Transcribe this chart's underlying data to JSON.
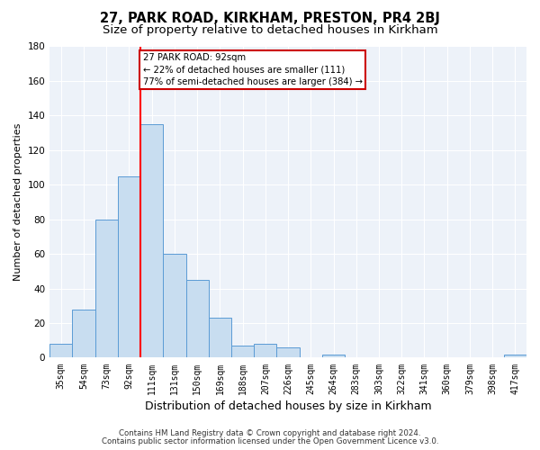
{
  "title": "27, PARK ROAD, KIRKHAM, PRESTON, PR4 2BJ",
  "subtitle": "Size of property relative to detached houses in Kirkham",
  "xlabel": "Distribution of detached houses by size in Kirkham",
  "ylabel": "Number of detached properties",
  "bar_labels": [
    "35sqm",
    "54sqm",
    "73sqm",
    "92sqm",
    "111sqm",
    "131sqm",
    "150sqm",
    "169sqm",
    "188sqm",
    "207sqm",
    "226sqm",
    "245sqm",
    "264sqm",
    "283sqm",
    "303sqm",
    "322sqm",
    "341sqm",
    "360sqm",
    "379sqm",
    "398sqm",
    "417sqm"
  ],
  "bar_heights": [
    8,
    28,
    80,
    105,
    135,
    60,
    45,
    23,
    7,
    8,
    6,
    0,
    2,
    0,
    0,
    0,
    0,
    0,
    0,
    0,
    2
  ],
  "bar_color": "#c8ddf0",
  "bar_edge_color": "#5b9bd5",
  "vline_x_index": 3,
  "vline_color": "red",
  "annotation_text": "27 PARK ROAD: 92sqm\n← 22% of detached houses are smaller (111)\n77% of semi-detached houses are larger (384) →",
  "annotation_box_color": "white",
  "annotation_box_edge": "#cc0000",
  "ylim": [
    0,
    180
  ],
  "yticks": [
    0,
    20,
    40,
    60,
    80,
    100,
    120,
    140,
    160,
    180
  ],
  "footer1": "Contains HM Land Registry data © Crown copyright and database right 2024.",
  "footer2": "Contains public sector information licensed under the Open Government Licence v3.0.",
  "bg_color": "#edf2f9",
  "grid_color": "#ffffff",
  "title_fontsize": 10.5,
  "subtitle_fontsize": 9.5,
  "ylabel_fontsize": 8,
  "xlabel_fontsize": 9,
  "tick_fontsize": 7,
  "footer_fontsize": 6.2
}
